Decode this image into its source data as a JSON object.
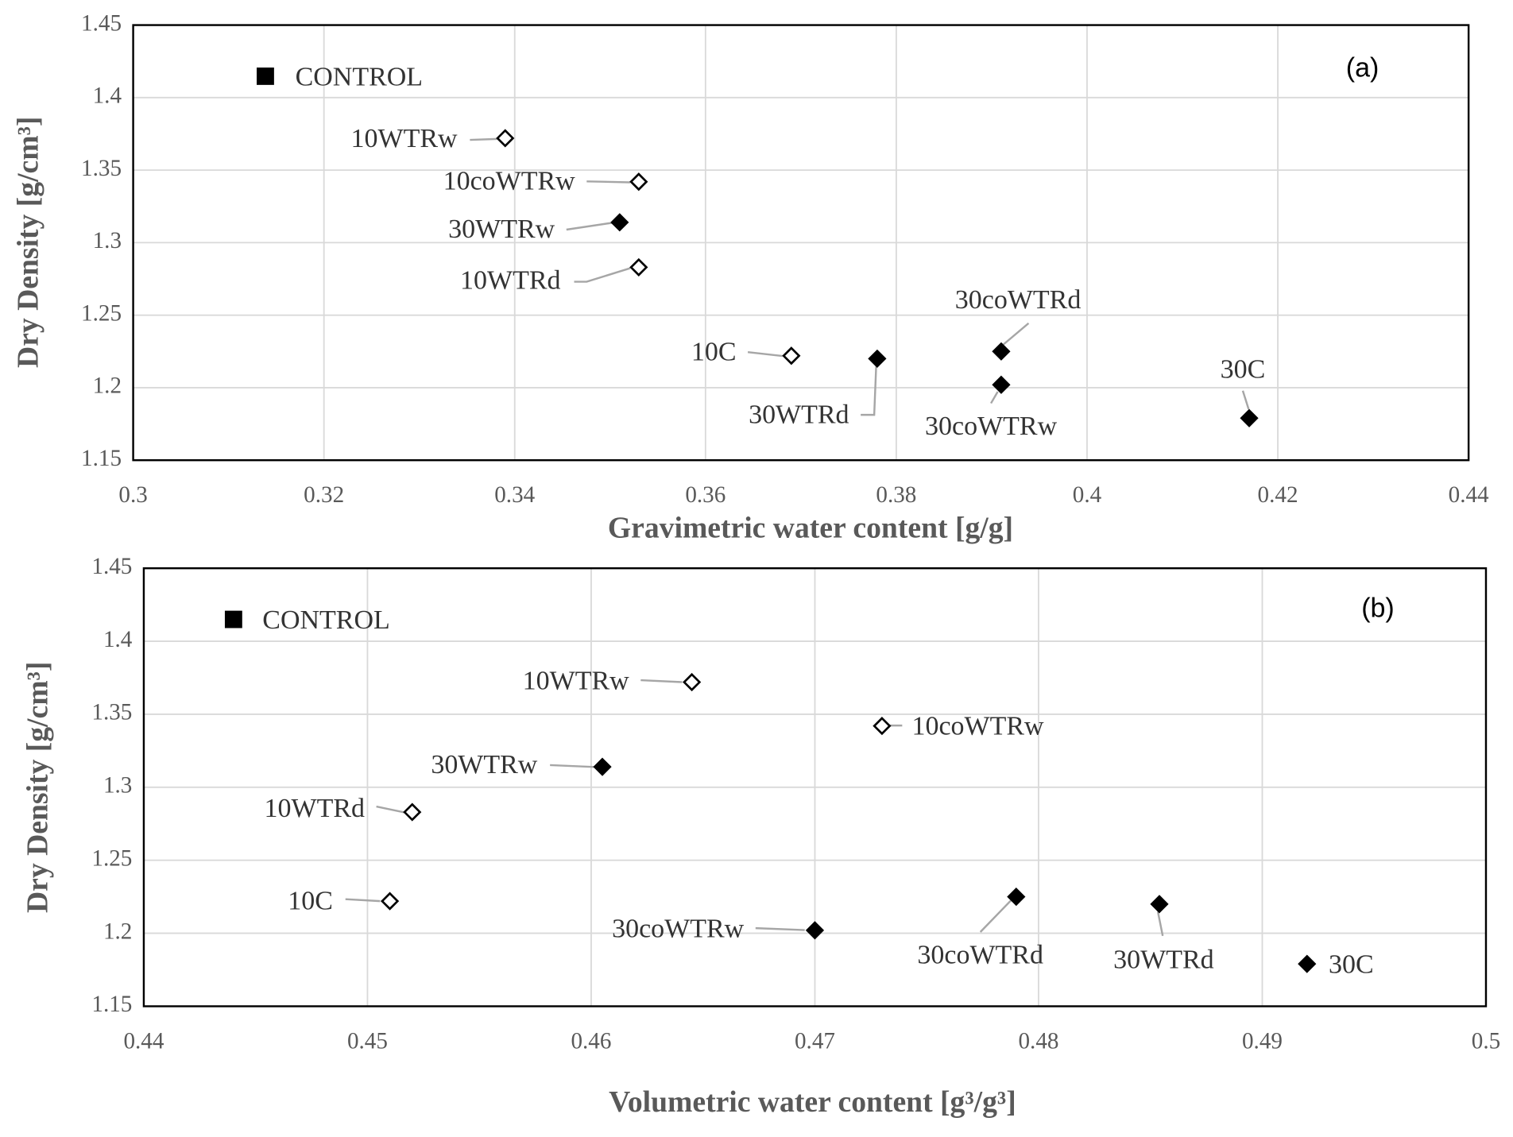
{
  "chart_data": [
    {
      "type": "scatter",
      "panel_label": "(a)",
      "xlabel": "Gravimetric water content [g/g]",
      "ylabel": "Dry Density [g/cm³]",
      "xlim": [
        0.3,
        0.44
      ],
      "xticks": [
        0.3,
        0.32,
        0.34,
        0.36,
        0.38,
        0.4,
        0.42,
        0.44
      ],
      "ylim": [
        1.15,
        1.45
      ],
      "yticks": [
        1.15,
        1.2,
        1.25,
        1.3,
        1.35,
        1.4,
        1.45
      ],
      "grid": true,
      "legend": {
        "name": "CONTROL",
        "marker": "square",
        "color": "#000000"
      },
      "points": [
        {
          "label": "10WTRw",
          "x": 0.339,
          "y": 1.372,
          "filled": false
        },
        {
          "label": "10coWTRw",
          "x": 0.353,
          "y": 1.342,
          "filled": false
        },
        {
          "label": "30WTRw",
          "x": 0.351,
          "y": 1.314,
          "filled": true
        },
        {
          "label": "10WTRd",
          "x": 0.353,
          "y": 1.283,
          "filled": false
        },
        {
          "label": "10C",
          "x": 0.369,
          "y": 1.222,
          "filled": false
        },
        {
          "label": "30WTRd",
          "x": 0.378,
          "y": 1.22,
          "filled": true
        },
        {
          "label": "30coWTRd",
          "x": 0.391,
          "y": 1.225,
          "filled": true
        },
        {
          "label": "30coWTRw",
          "x": 0.391,
          "y": 1.202,
          "filled": true
        },
        {
          "label": "30C",
          "x": 0.417,
          "y": 1.179,
          "filled": true
        }
      ]
    },
    {
      "type": "scatter",
      "panel_label": "(b)",
      "xlabel": "Volumetric water content [g³/g³]",
      "ylabel": "Dry Density [g/cm³]",
      "xlim": [
        0.44,
        0.5
      ],
      "xticks": [
        0.44,
        0.45,
        0.46,
        0.47,
        0.48,
        0.49,
        0.5
      ],
      "ylim": [
        1.15,
        1.45
      ],
      "yticks": [
        1.15,
        1.2,
        1.25,
        1.3,
        1.35,
        1.4,
        1.45
      ],
      "grid": true,
      "legend": {
        "name": "CONTROL",
        "marker": "square",
        "color": "#000000"
      },
      "points": [
        {
          "label": "10WTRw",
          "x": 0.4645,
          "y": 1.372,
          "filled": false
        },
        {
          "label": "10coWTRw",
          "x": 0.473,
          "y": 1.342,
          "filled": false
        },
        {
          "label": "30WTRw",
          "x": 0.4605,
          "y": 1.314,
          "filled": true
        },
        {
          "label": "10WTRd",
          "x": 0.452,
          "y": 1.283,
          "filled": false
        },
        {
          "label": "10C",
          "x": 0.451,
          "y": 1.222,
          "filled": false
        },
        {
          "label": "30coWTRw",
          "x": 0.47,
          "y": 1.202,
          "filled": true
        },
        {
          "label": "30coWTRd",
          "x": 0.479,
          "y": 1.225,
          "filled": true
        },
        {
          "label": "30WTRd",
          "x": 0.4854,
          "y": 1.22,
          "filled": true
        },
        {
          "label": "30C",
          "x": 0.492,
          "y": 1.179,
          "filled": true
        }
      ]
    }
  ]
}
